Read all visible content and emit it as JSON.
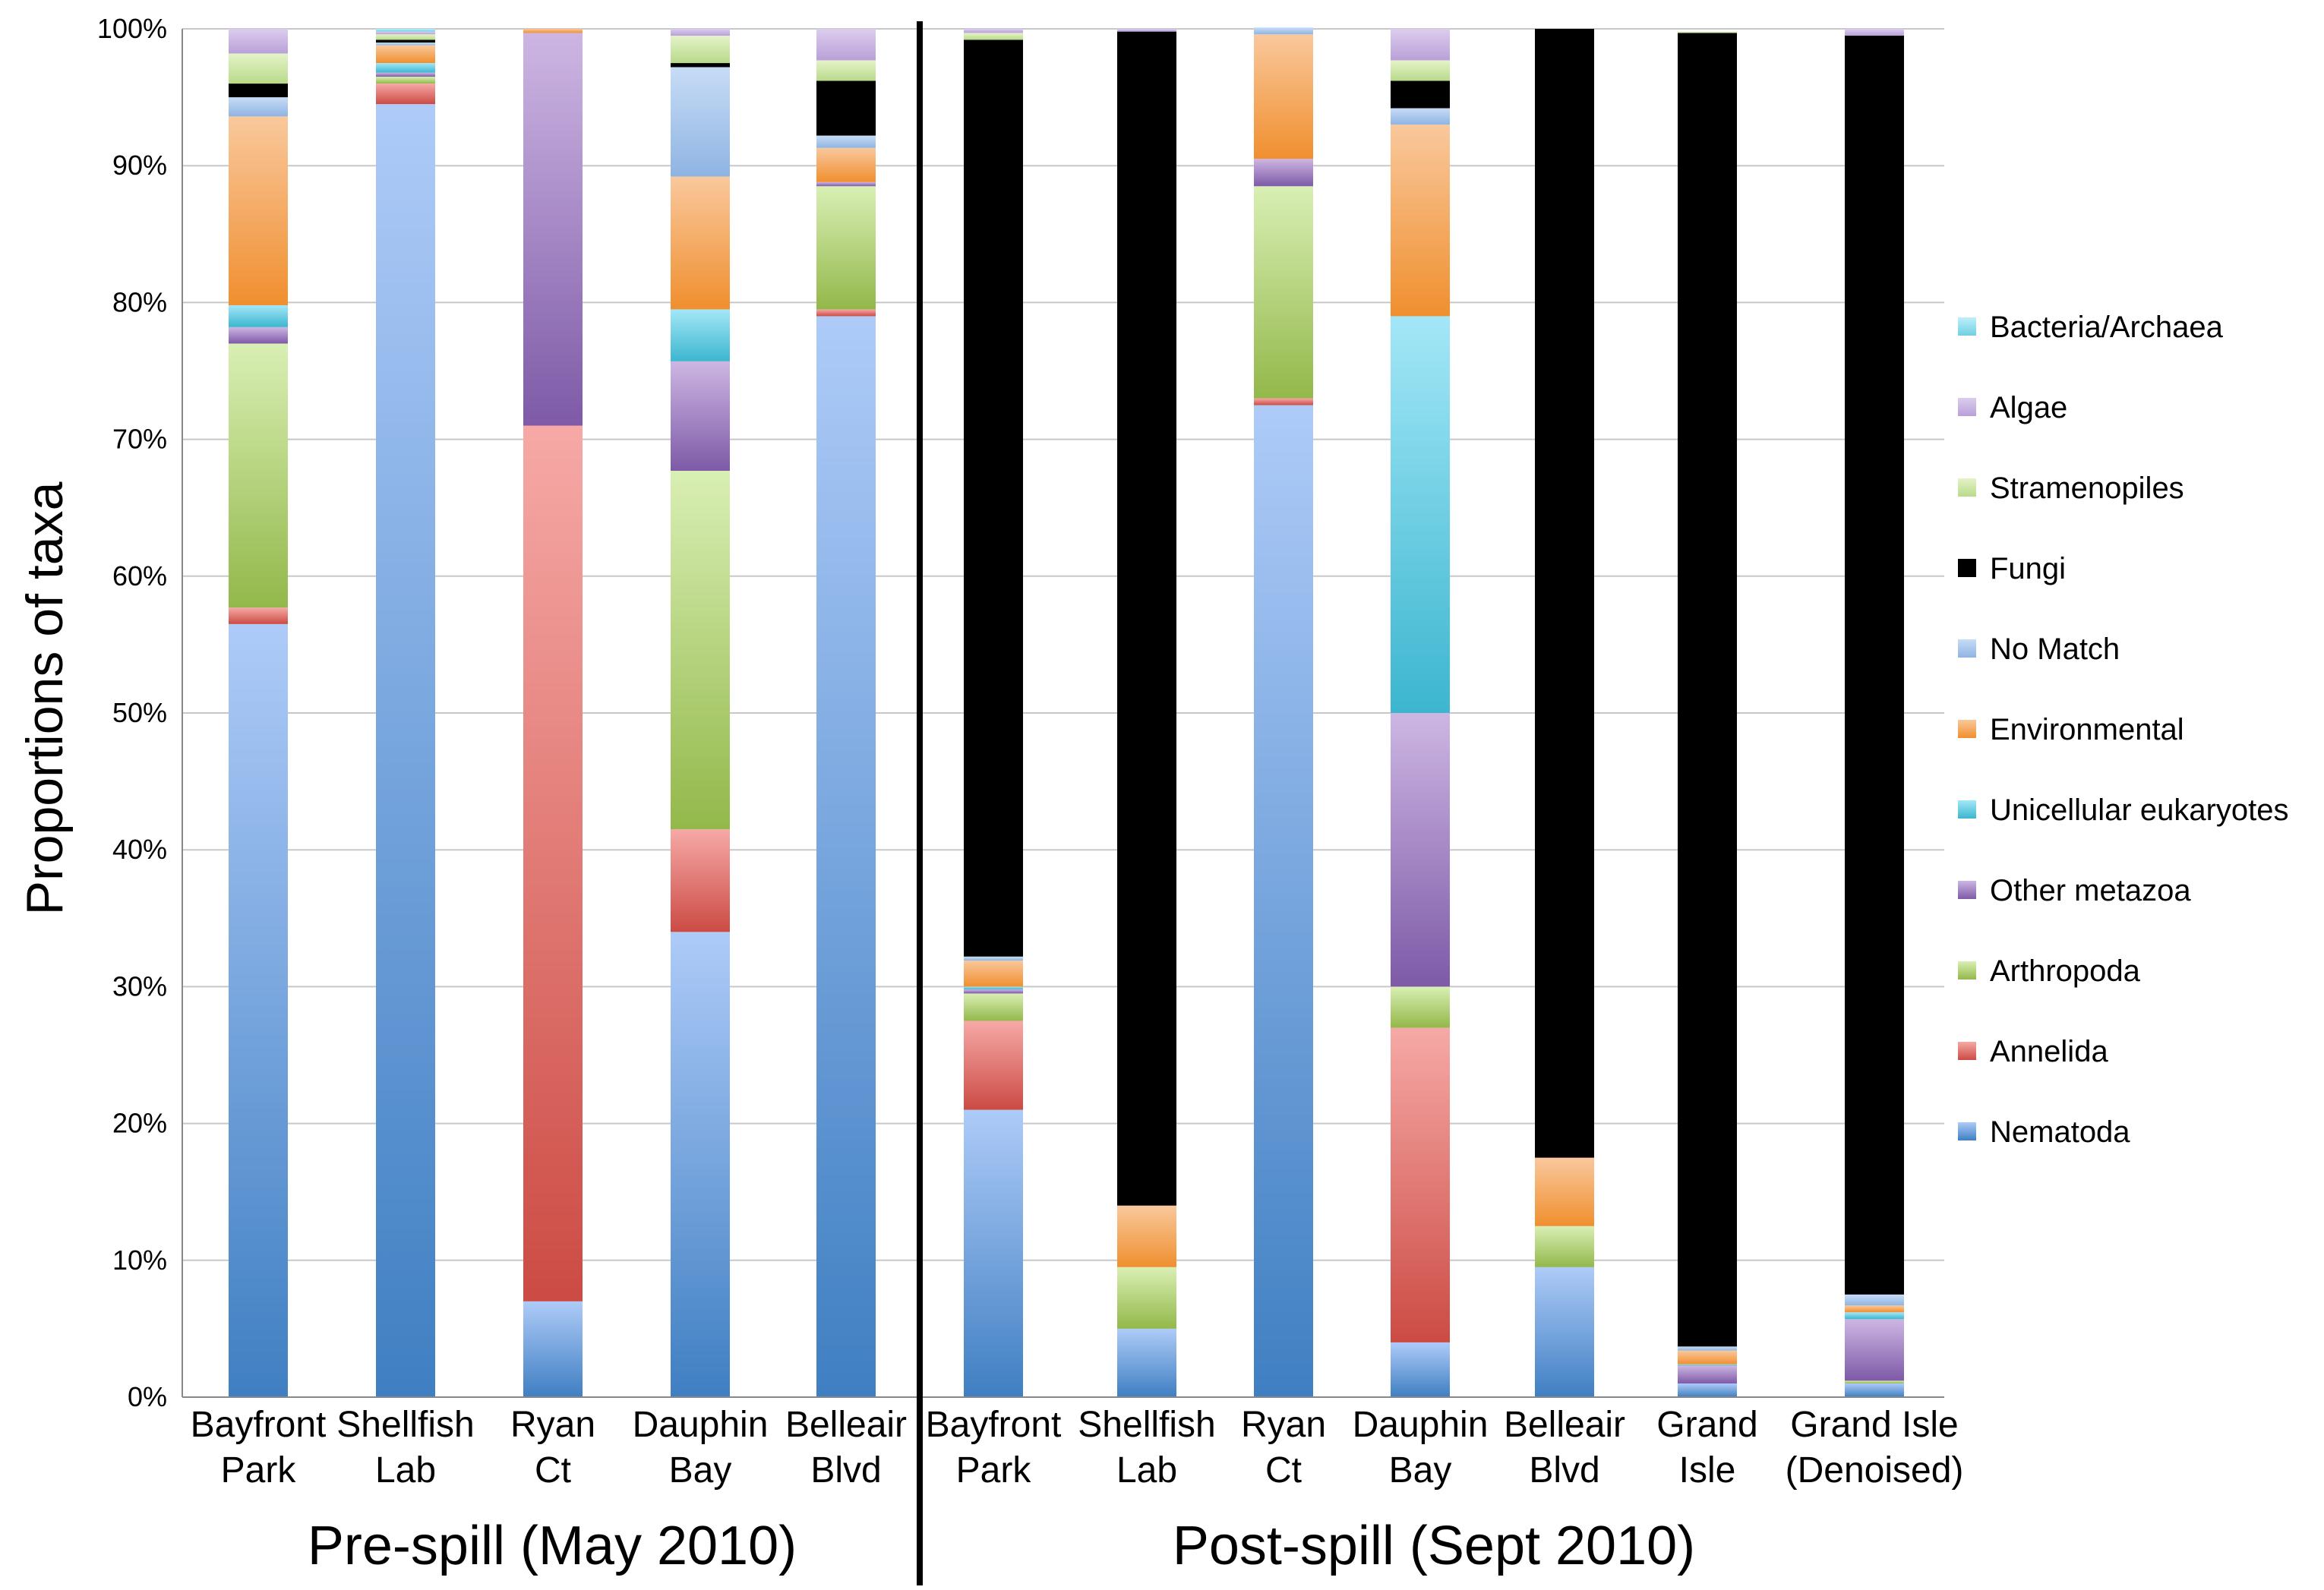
{
  "chart_data": {
    "type": "bar",
    "stacked": true,
    "normalized": true,
    "ylabel": "Proportions of taxa",
    "ylim": [
      0,
      100
    ],
    "yticks": [
      "0%",
      "10%",
      "20%",
      "30%",
      "40%",
      "50%",
      "60%",
      "70%",
      "80%",
      "90%",
      "100%"
    ],
    "grid": true,
    "legend_position": "right",
    "groups": [
      {
        "label": "Pre-spill (May 2010)",
        "category_count": 5
      },
      {
        "label": "Post-spill (Sept 2010)",
        "category_count": 7
      }
    ],
    "categories": [
      [
        "Bayfront",
        "Park"
      ],
      [
        "Shellfish",
        "Lab"
      ],
      [
        "Ryan",
        "Ct"
      ],
      [
        "Dauphin",
        "Bay"
      ],
      [
        "Belleair",
        "Blvd"
      ],
      [
        "Bayfront",
        "Park"
      ],
      [
        "Shellfish",
        "Lab"
      ],
      [
        "Ryan",
        "Ct"
      ],
      [
        "Dauphin",
        "Bay"
      ],
      [
        "Belleair",
        "Blvd"
      ],
      [
        "Grand",
        "Isle"
      ],
      [
        "Grand Isle",
        "(Denoised)"
      ]
    ],
    "series": [
      {
        "name": "Nematoda",
        "color_top": "#aecbf8",
        "color_bottom": "#3f7fc2",
        "values": [
          56.5,
          94.5,
          7.0,
          34.0,
          79.0,
          21.0,
          5.0,
          72.5,
          4.0,
          9.5,
          1.0,
          1.0
        ]
      },
      {
        "name": "Annelida",
        "color_top": "#f6a9a6",
        "color_bottom": "#cc4b44",
        "values": [
          1.2,
          1.5,
          64.0,
          7.5,
          0.5,
          6.5,
          0.0,
          0.5,
          23.0,
          0.0,
          0.0,
          0.0
        ]
      },
      {
        "name": "Arthropoda",
        "color_top": "#d9efb4",
        "color_bottom": "#93b84a",
        "values": [
          19.3,
          0.5,
          0.0,
          26.2,
          9.0,
          2.0,
          4.5,
          15.5,
          3.0,
          3.0,
          0.0,
          0.2
        ]
      },
      {
        "name": "Other metazoa",
        "color_top": "#cdb6e3",
        "color_bottom": "#7e5aa7",
        "values": [
          1.2,
          0.3,
          28.7,
          8.0,
          0.3,
          0.3,
          0.0,
          2.0,
          20.0,
          0.0,
          1.3,
          4.5
        ]
      },
      {
        "name": "Unicellular eukaryotes",
        "color_top": "#a3e7f7",
        "color_bottom": "#3cb6cf",
        "values": [
          1.6,
          0.7,
          0.0,
          3.8,
          0.0,
          0.2,
          0.0,
          0.0,
          29.0,
          0.0,
          0.1,
          0.5
        ]
      },
      {
        "name": "Environmental",
        "color_top": "#f9c89c",
        "color_bottom": "#f08f2f",
        "values": [
          13.8,
          1.3,
          0.3,
          9.7,
          2.5,
          1.9,
          4.5,
          9.1,
          14.0,
          5.0,
          1.0,
          0.5
        ]
      },
      {
        "name": "No Match",
        "color_top": "#c7dcf6",
        "color_bottom": "#8fb4e2",
        "values": [
          1.4,
          0.2,
          0.0,
          8.0,
          0.9,
          0.3,
          0.0,
          0.5,
          1.2,
          0.0,
          0.3,
          0.8
        ]
      },
      {
        "name": "Fungi",
        "color_top": "#000000",
        "color_bottom": "#000000",
        "values": [
          1.0,
          0.2,
          0.0,
          0.3,
          4.0,
          67.0,
          85.8,
          0.0,
          2.0,
          82.5,
          96.0,
          92.0
        ]
      },
      {
        "name": "Stramenopiles",
        "color_top": "#e4f3c8",
        "color_bottom": "#b9da8a",
        "values": [
          2.2,
          0.4,
          0.0,
          2.0,
          1.5,
          0.5,
          0.0,
          0.0,
          1.5,
          0.0,
          0.1,
          0.0
        ]
      },
      {
        "name": "Algae",
        "color_top": "#dccdee",
        "color_bottom": "#b9a0d8",
        "values": [
          1.8,
          0.2,
          0.0,
          0.5,
          2.3,
          0.3,
          0.2,
          0.0,
          2.3,
          0.0,
          0.0,
          0.5
        ]
      },
      {
        "name": "Bacteria/Archaea",
        "color_top": "#bdeff9",
        "color_bottom": "#6fd0e3",
        "values": [
          0.0,
          0.2,
          0.0,
          0.0,
          0.0,
          0.0,
          0.0,
          0.0,
          0.0,
          0.0,
          0.0,
          0.0
        ]
      }
    ],
    "legend_order": [
      "Bacteria/Archaea",
      "Algae",
      "Stramenopiles",
      "Fungi",
      "No Match",
      "Environmental",
      "Unicellular eukaryotes",
      "Other metazoa",
      "Arthropoda",
      "Annelida",
      "Nematoda"
    ]
  }
}
